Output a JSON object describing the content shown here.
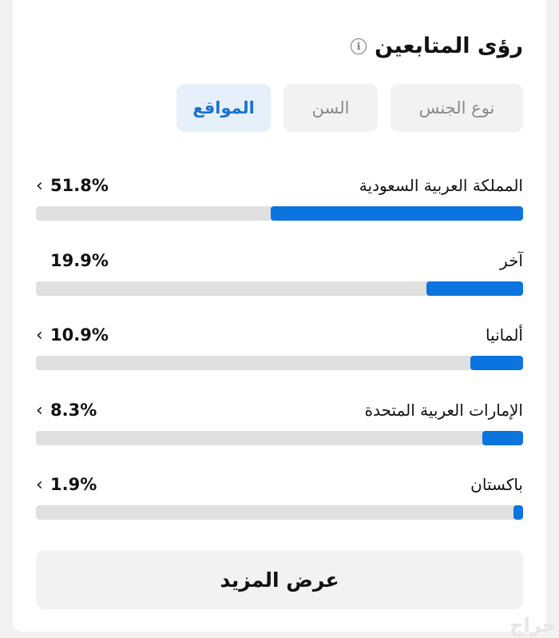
{
  "title": "رؤى المتابعين",
  "info_icon": "info-icon",
  "tabs": [
    {
      "label": "نوع الجنس",
      "active": false
    },
    {
      "label": "السن",
      "active": false
    },
    {
      "label": "المواقع",
      "active": true
    }
  ],
  "locations": [
    {
      "label": "المملكة العربية السعودية",
      "percent_text": "51.8%",
      "percent": 51.8,
      "has_chevron": true
    },
    {
      "label": "آخر",
      "percent_text": "19.9%",
      "percent": 19.9,
      "has_chevron": false
    },
    {
      "label": "ألمانيا",
      "percent_text": "10.9%",
      "percent": 10.9,
      "has_chevron": true
    },
    {
      "label": "الإمارات العربية المتحدة",
      "percent_text": "8.3%",
      "percent": 8.3,
      "has_chevron": true
    },
    {
      "label": "باكستان",
      "percent_text": "1.9%",
      "percent": 1.9,
      "has_chevron": true
    }
  ],
  "chevron_glyph": "‹",
  "show_more_label": "عرض المزيد",
  "watermark": "حراج",
  "colors": {
    "accent": "#0b74de",
    "track": "#e0e0e0",
    "active_tab_bg": "#e6f0fb",
    "active_tab_text": "#1a72d1"
  }
}
